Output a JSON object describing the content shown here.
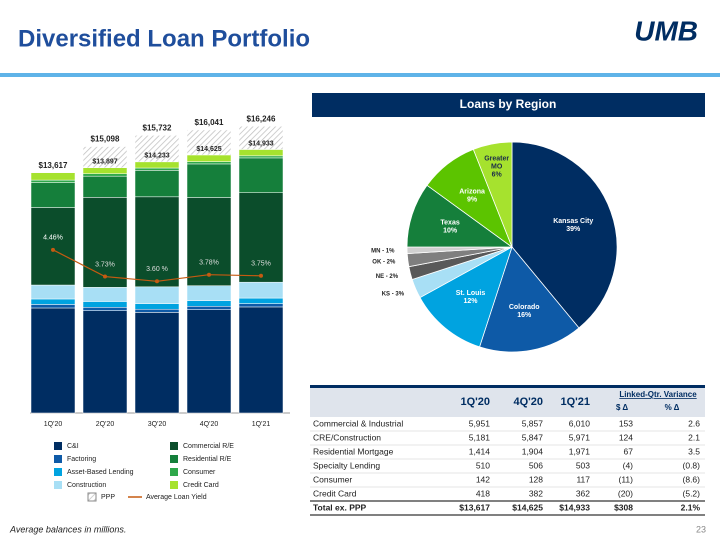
{
  "header": {
    "title": "Diversified Loan Portfolio",
    "logo": "UMB"
  },
  "chart_data": [
    {
      "type": "bar",
      "stacked": true,
      "categories": [
        "1Q'20",
        "2Q'20",
        "3Q'20",
        "4Q'20",
        "1Q'21"
      ],
      "ylim": [
        0,
        17000
      ],
      "y2lim": [
        0,
        8.2
      ],
      "series": [
        {
          "name": "C&I",
          "color": "#002d62",
          "values": [
            5951,
            5800,
            5700,
            5857,
            6010
          ]
        },
        {
          "name": "Factoring",
          "color": "#0e5aa7",
          "values": [
            200,
            190,
            180,
            190,
            190
          ]
        },
        {
          "name": "Asset-Based Lending",
          "color": "#00a3e0",
          "values": [
            310,
            330,
            320,
            316,
            313
          ]
        },
        {
          "name": "Construction",
          "color": "#a8dff5",
          "values": [
            790,
            800,
            950,
            850,
            900
          ]
        },
        {
          "name": "Commercial R/E",
          "color": "#0b4d2b",
          "values": [
            4391,
            5100,
            5100,
            4997,
            5071
          ]
        },
        {
          "name": "Residential R/E",
          "color": "#157f3b",
          "values": [
            1414,
            1200,
            1500,
            1904,
            1971
          ]
        },
        {
          "name": "Consumer",
          "color": "#2ea84a",
          "values": [
            142,
            137,
            133,
            128,
            117
          ]
        },
        {
          "name": "Credit Card",
          "color": "#a6e22e",
          "values": [
            418,
            340,
            350,
            382,
            362
          ]
        },
        {
          "name": "PPP",
          "color": "#bfbfbf",
          "pattern": "hatch",
          "values": [
            0,
            1201,
            1499,
            1416,
            1313
          ]
        },
        {
          "name": "Average Loan Yield",
          "type": "line",
          "axis": "y2",
          "color": "#c55a11",
          "values": [
            4.46,
            3.73,
            3.6,
            3.78,
            3.75
          ],
          "value_labels": [
            "4.46%",
            "3.73%",
            "3.60 %",
            "3.78%",
            "3.75%"
          ]
        }
      ],
      "total_labels": [
        "$13,617",
        "$15,098",
        "$15,732",
        "$16,041",
        "$16,246"
      ],
      "ex_ppp_labels": [
        null,
        "$13,897",
        "$14,233",
        "$14,625",
        "$14,933"
      ]
    },
    {
      "type": "pie",
      "title": "Loans by Region",
      "values": [
        39,
        16,
        12,
        3,
        2,
        2,
        1,
        10,
        9,
        6
      ],
      "labels": [
        [
          "Kansas City",
          "39%"
        ],
        [
          "Colorado",
          "16%"
        ],
        [
          "St. Louis",
          "12%"
        ],
        [
          "KS - 3%"
        ],
        [
          "NE - 2%"
        ],
        [
          "OK - 2%"
        ],
        [
          "MN - 1%"
        ],
        [
          "Texas",
          "10%"
        ],
        [
          "Arizona",
          "9%"
        ],
        [
          "Greater",
          "MO",
          "6%"
        ]
      ],
      "colors": [
        "#002d62",
        "#0e5aa7",
        "#00a3e0",
        "#a8dff5",
        "#595959",
        "#7f7f7f",
        "#d0d0d0",
        "#157f3b",
        "#5cc400",
        "#a6e22e"
      ]
    }
  ],
  "table": {
    "columns": [
      "1Q'20",
      "4Q'20",
      "1Q'21"
    ],
    "group": "Linked-Qtr. Variance",
    "subcolumns": [
      "$ Δ",
      "% Δ"
    ],
    "rows": [
      [
        "Commercial & Industrial",
        "5,951",
        "5,857",
        "6,010",
        "153",
        "2.6"
      ],
      [
        "CRE/Construction",
        "5,181",
        "5,847",
        "5,971",
        "124",
        "2.1"
      ],
      [
        "Residential Mortgage",
        "1,414",
        "1,904",
        "1,971",
        "67",
        "3.5"
      ],
      [
        "Specialty Lending",
        "510",
        "506",
        "503",
        "(4)",
        "(0.8)"
      ],
      [
        "Consumer",
        "142",
        "128",
        "117",
        "(11)",
        "(8.6)"
      ],
      [
        "Credit Card",
        "418",
        "382",
        "362",
        "(20)",
        "(5.2)"
      ]
    ],
    "total": [
      "Total ex. PPP",
      "$13,617",
      "$14,625",
      "$14,933",
      "$308",
      "2.1%"
    ]
  },
  "footer": {
    "note": "Average balances in millions.",
    "page": "23"
  }
}
